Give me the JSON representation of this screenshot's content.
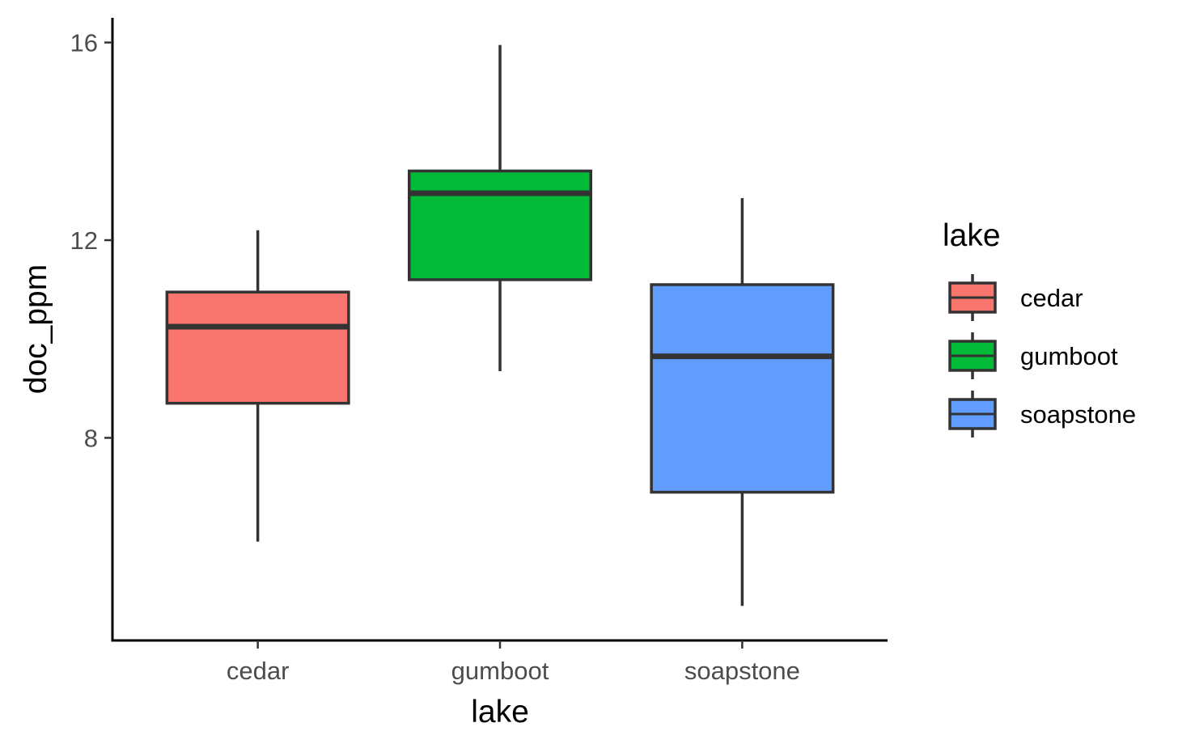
{
  "chart_data": {
    "type": "boxplot",
    "title": "",
    "xlabel": "lake",
    "ylabel": "doc_ppm",
    "categories": [
      "cedar",
      "gumboot",
      "soapstone"
    ],
    "ylim": [
      3.9,
      16.5
    ],
    "yticks": [
      8,
      12,
      16
    ],
    "grid": false,
    "series": [
      {
        "name": "cedar",
        "color": "#F8766D",
        "min": 5.9,
        "q1": 8.7,
        "median": 10.25,
        "q3": 10.95,
        "max": 12.2
      },
      {
        "name": "gumboot",
        "color": "#00BA38",
        "min": 9.35,
        "q1": 11.2,
        "median": 12.95,
        "q3": 13.4,
        "max": 15.95
      },
      {
        "name": "soapstone",
        "color": "#619CFF",
        "min": 4.6,
        "q1": 6.9,
        "median": 9.65,
        "q3": 11.1,
        "max": 12.85
      }
    ],
    "legend": {
      "title": "lake",
      "position": "right",
      "items": [
        "cedar",
        "gumboot",
        "soapstone"
      ]
    }
  }
}
